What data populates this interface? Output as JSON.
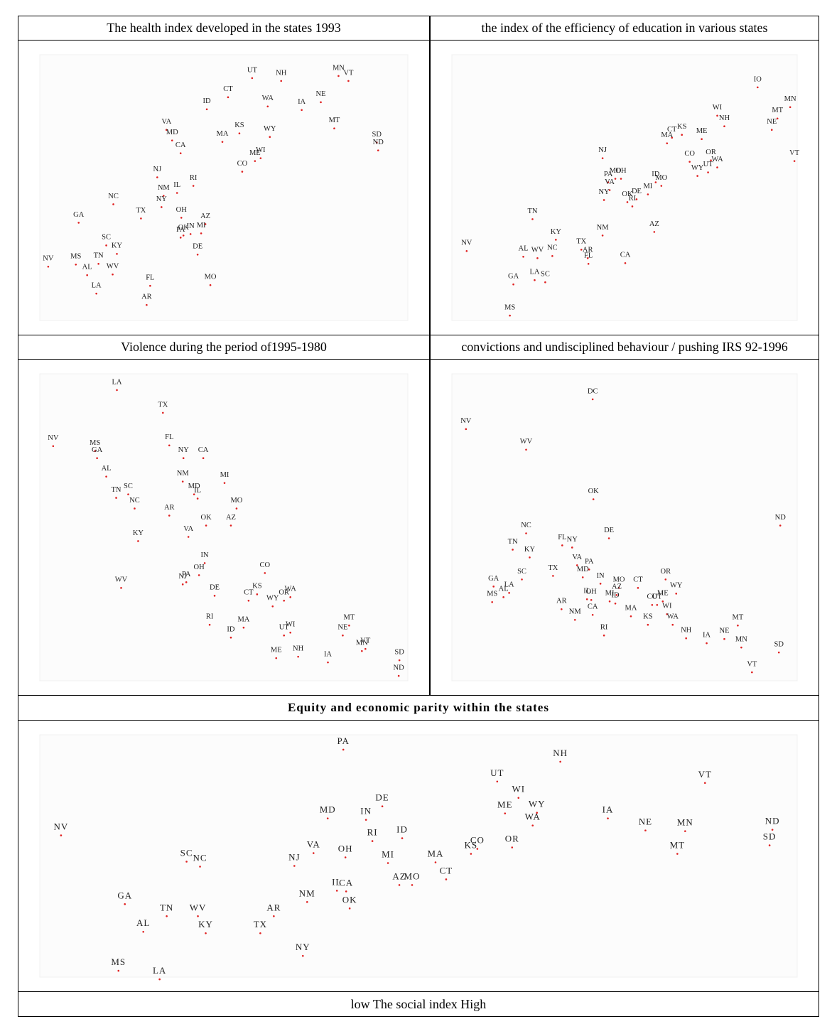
{
  "chart_data": [
    {
      "type": "scatter",
      "title": "The health index developed in the states 1993",
      "color": "#e02020",
      "label_color": "#222",
      "xlim": [
        0,
        580
      ],
      "ylim": [
        0,
        415
      ],
      "labels": [
        "UT",
        "NH",
        "MN",
        "VT",
        "CT",
        "ID",
        "WA",
        "IA",
        "NE",
        "VA",
        "MD",
        "KS",
        "MA",
        "WY",
        "MT",
        "SD",
        "ND",
        "CA",
        "WI",
        "ME",
        "CO",
        "NJ",
        "RI",
        "IL",
        "NM",
        "NC",
        "NY",
        "TX",
        "OH",
        "GA",
        "AZ",
        "OK",
        "IN",
        "MI",
        "PA",
        "SC",
        "KY",
        "DE",
        "MS",
        "TN",
        "AL",
        "WV",
        "LA",
        "FL",
        "MO",
        "AR",
        "NV"
      ],
      "x": [
        330,
        371,
        452,
        466,
        296,
        266,
        352,
        400,
        427,
        209,
        217,
        312,
        288,
        355,
        446,
        506,
        508,
        229,
        342,
        334,
        316,
        196,
        247,
        224,
        205,
        134,
        202,
        173,
        230,
        85,
        264,
        233,
        243,
        258,
        229,
        124,
        139,
        253,
        81,
        113,
        97,
        133,
        110,
        186,
        271,
        181,
        42
      ],
      "y": [
        373,
        369,
        376,
        369,
        346,
        329,
        333,
        328,
        339,
        300,
        285,
        295,
        283,
        290,
        302,
        282,
        271,
        267,
        260,
        256,
        241,
        233,
        221,
        211,
        207,
        195,
        191,
        175,
        176,
        169,
        167,
        151,
        153,
        154,
        148,
        137,
        125,
        124,
        110,
        111,
        95,
        96,
        69,
        80,
        81,
        53,
        107
      ]
    },
    {
      "type": "scatter",
      "title": "the index of the efficiency of education in various states",
      "color": "#e02020",
      "label_color": "#1f3a1f",
      "xlim": [
        0,
        548
      ],
      "ylim": [
        0,
        415
      ],
      "labels": [
        "IO",
        "MN",
        "WI",
        "MT",
        "NH",
        "NE",
        "CT",
        "KS",
        "MA",
        "ME",
        "NJ",
        "CO",
        "OR",
        "WA",
        "VT",
        "UT",
        "WY",
        "PA",
        "MD",
        "OH",
        "ID",
        "MO",
        "VA",
        "MI",
        "NY",
        "DE",
        "OK",
        "RI",
        "TN",
        "KY",
        "NM",
        "AZ",
        "NV",
        "TX",
        "AL",
        "WV",
        "NC",
        "AR",
        "FL",
        "CA",
        "LA",
        "SC",
        "GA",
        "MS"
      ],
      "x": [
        462,
        508,
        405,
        490,
        415,
        482,
        341,
        355,
        334,
        383,
        243,
        366,
        396,
        405,
        514,
        392,
        377,
        251,
        261,
        269,
        318,
        326,
        253,
        307,
        245,
        291,
        278,
        285,
        144,
        177,
        243,
        316,
        51,
        213,
        131,
        151,
        172,
        222,
        223,
        275,
        147,
        162,
        117,
        112
      ],
      "y": [
        360,
        332,
        320,
        316,
        305,
        300,
        289,
        293,
        281,
        287,
        260,
        255,
        257,
        247,
        256,
        240,
        235,
        226,
        231,
        231,
        226,
        221,
        215,
        209,
        201,
        202,
        198,
        192,
        174,
        145,
        151,
        156,
        129,
        131,
        121,
        119,
        122,
        119,
        111,
        112,
        88,
        85,
        82,
        38
      ]
    },
    {
      "type": "scatter",
      "title": "Violence during the period of1995-1980",
      "color": "#e02020",
      "label_color": "#4a1f4a",
      "xlim": [
        0,
        580
      ],
      "ylim": [
        0,
        473
      ],
      "labels": [
        "LA",
        "TX",
        "NV",
        "MS",
        "GA",
        "FL",
        "NY",
        "CA",
        "AL",
        "NM",
        "MI",
        "TN",
        "SC",
        "MD",
        "IL",
        "NC",
        "MO",
        "AR",
        "OK",
        "AZ",
        "VA",
        "KY",
        "IN",
        "OH",
        "CO",
        "NJ",
        "PA",
        "WV",
        "DE",
        "KS",
        "CT",
        "OR",
        "WA",
        "WY",
        "RI",
        "MA",
        "MT",
        "NE",
        "UT",
        "WI",
        "ID",
        "MN",
        "VT",
        "ME",
        "NH",
        "IA",
        "SD",
        "ND"
      ],
      "x": [
        139,
        204,
        49,
        108,
        111,
        213,
        233,
        261,
        124,
        232,
        291,
        138,
        155,
        248,
        253,
        164,
        308,
        213,
        265,
        300,
        240,
        169,
        263,
        255,
        348,
        232,
        237,
        145,
        277,
        337,
        325,
        375,
        384,
        359,
        270,
        318,
        467,
        458,
        375,
        384,
        300,
        485,
        490,
        364,
        395,
        437,
        538,
        537
      ],
      "y": [
        441,
        409,
        362,
        355,
        345,
        363,
        345,
        345,
        319,
        312,
        310,
        289,
        294,
        294,
        288,
        274,
        274,
        264,
        250,
        250,
        234,
        228,
        197,
        180,
        183,
        167,
        170,
        162,
        151,
        153,
        144,
        144,
        149,
        136,
        110,
        106,
        109,
        95,
        95,
        99,
        92,
        73,
        76,
        63,
        65,
        57,
        60,
        38
      ]
    },
    {
      "type": "scatter",
      "title": "convictions and undisciplined behaviour / pushing IRS 92-1996",
      "color": "#e02020",
      "label_color": "#222",
      "xlim": [
        0,
        548
      ],
      "ylim": [
        0,
        473
      ],
      "labels": [
        "DC",
        "NV",
        "WV",
        "OK",
        "ND",
        "NC",
        "DE",
        "TN",
        "KY",
        "FL",
        "NY",
        "VA",
        "PA",
        "TX",
        "MD",
        "IN",
        "SC",
        "OR",
        "GA",
        "MO",
        "CT",
        "WY",
        "AZ",
        "LA",
        "AL",
        "MS",
        "IL",
        "OH",
        "MI",
        "ID",
        "CO",
        "UT",
        "ME",
        "AR",
        "WI",
        "CA",
        "MA",
        "NM",
        "KS",
        "WA",
        "MT",
        "RI",
        "NH",
        "IA",
        "NE",
        "MN",
        "SD",
        "VT"
      ],
      "x": [
        229,
        50,
        135,
        230,
        494,
        135,
        252,
        116,
        140,
        186,
        200,
        207,
        224,
        173,
        215,
        240,
        129,
        332,
        89,
        266,
        293,
        347,
        263,
        111,
        103,
        87,
        221,
        227,
        253,
        261,
        313,
        320,
        328,
        185,
        334,
        229,
        283,
        204,
        307,
        342,
        434,
        245,
        361,
        390,
        415,
        439,
        492,
        454
      ],
      "y": [
        428,
        386,
        357,
        287,
        250,
        239,
        232,
        216,
        205,
        222,
        219,
        194,
        188,
        179,
        177,
        168,
        174,
        174,
        164,
        162,
        162,
        154,
        152,
        155,
        149,
        142,
        146,
        145,
        143,
        140,
        138,
        138,
        143,
        132,
        125,
        124,
        122,
        117,
        110,
        110,
        109,
        95,
        91,
        84,
        90,
        78,
        71,
        43
      ]
    },
    {
      "type": "scatter",
      "title": "Equity and economic parity within the states",
      "xlabel": "low The social index High",
      "color": "#e02020",
      "label_color": "#222",
      "xlim": [
        0,
        1128
      ],
      "ylim": [
        0,
        382
      ],
      "labels": [
        "PA",
        "NH",
        "UT",
        "VT",
        "WI",
        "DE",
        "ME",
        "WY",
        "MD",
        "IN",
        "IA",
        "WA",
        "NE",
        "MN",
        "ND",
        "NV",
        "ID",
        "RI",
        "SD",
        "OR",
        "CO",
        "KS",
        "VA",
        "OH",
        "MT",
        "SC",
        "NC",
        "NJ",
        "MI",
        "MA",
        "CT",
        "AZ",
        "MO",
        "IL",
        "CA",
        "NM",
        "GA",
        "OK",
        "TN",
        "WV",
        "AR",
        "AL",
        "KY",
        "TX",
        "NY",
        "MS",
        "LA"
      ],
      "x": [
        458,
        764,
        675,
        968,
        705,
        513,
        686,
        731,
        436,
        490,
        831,
        725,
        884,
        940,
        1063,
        60,
        541,
        499,
        1059,
        696,
        647,
        638,
        416,
        461,
        929,
        237,
        256,
        389,
        521,
        588,
        603,
        537,
        555,
        449,
        462,
        407,
        150,
        467,
        209,
        253,
        360,
        176,
        264,
        341,
        401,
        141,
        199
      ],
      "y": [
        352,
        335,
        307,
        305,
        284,
        272,
        262,
        263,
        255,
        253,
        255,
        245,
        238,
        237,
        239,
        231,
        227,
        223,
        217,
        214,
        212,
        205,
        206,
        200,
        205,
        194,
        187,
        188,
        192,
        193,
        169,
        161,
        161,
        153,
        152,
        137,
        134,
        128,
        117,
        117,
        117,
        95,
        93,
        93,
        61,
        40,
        28
      ]
    }
  ]
}
